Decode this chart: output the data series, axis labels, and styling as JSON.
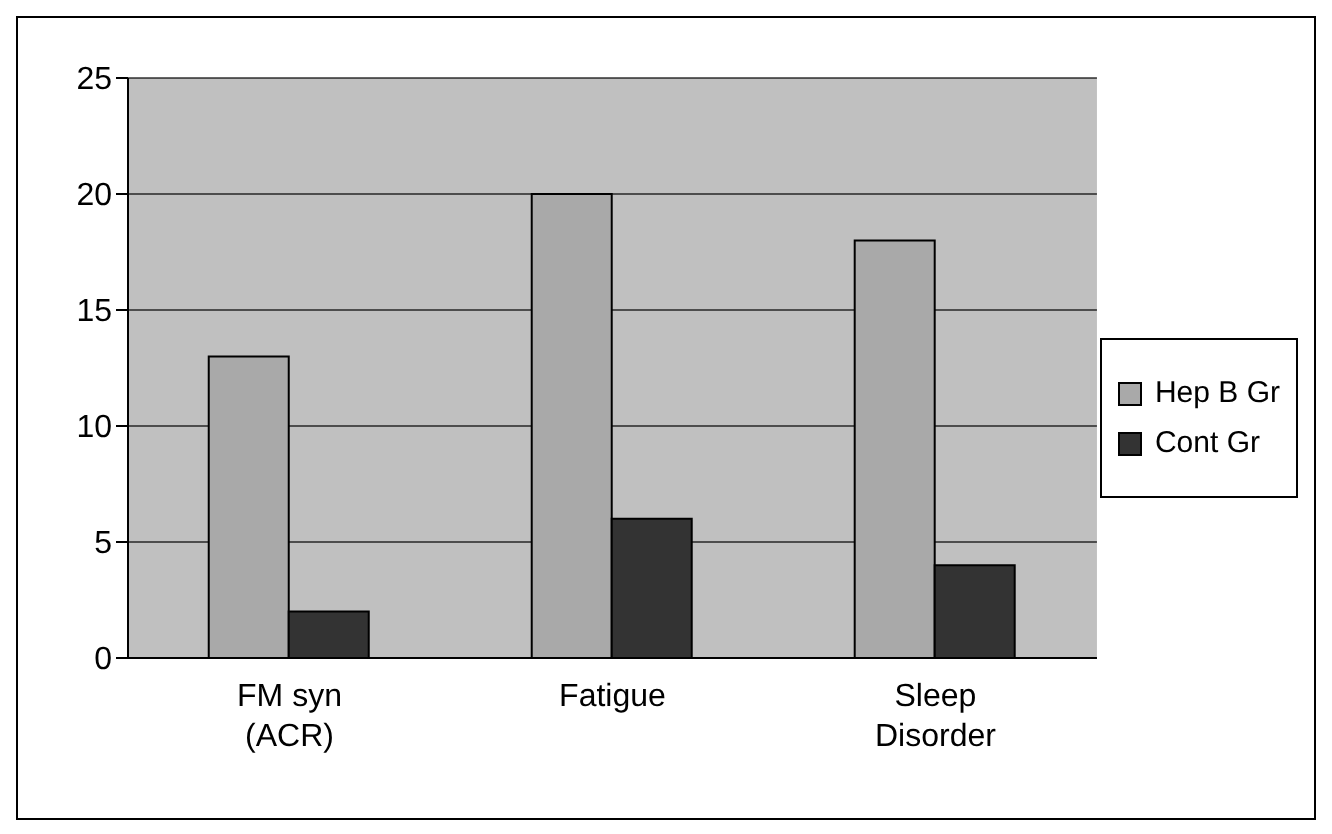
{
  "chart_data": {
    "type": "bar",
    "categories": [
      "FM syn (ACR)",
      "Fatigue",
      "Sleep Disorder"
    ],
    "series": [
      {
        "name": "Hep B Gr",
        "color": "#a9a9a9",
        "values": [
          13,
          20,
          18
        ]
      },
      {
        "name": "Cont Gr",
        "color": "#333333",
        "values": [
          2,
          6,
          4
        ]
      }
    ],
    "ylim": [
      0,
      25
    ],
    "yticks": [
      0,
      5,
      10,
      15,
      20,
      25
    ],
    "grid": "y",
    "legend": "right"
  }
}
